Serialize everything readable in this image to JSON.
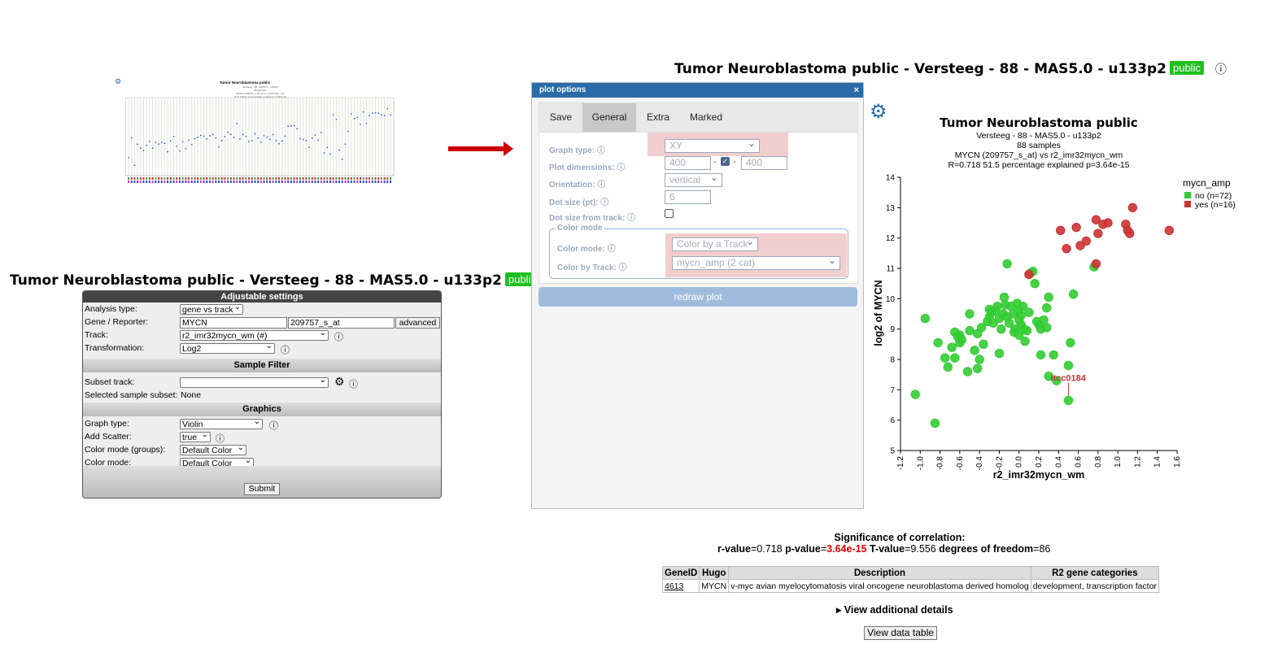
{
  "thumbnail": {
    "title": "Tumor Neuroblastoma public",
    "subtitle_lines": [
      "Versteeg - 88 - MAS5.0 - u133p2",
      "88 samples",
      "MYCN (209757_s_at) vs r2_imr32mycn_wm",
      "R=0.718 51.5 percentage explained p=3.64e-15"
    ]
  },
  "left_title": {
    "text": "Tumor Neuroblastoma public - Versteeg - 88 - MAS5.0 - u133p2",
    "badge": "public"
  },
  "settings": {
    "header": "Adjustable settings",
    "analysis_type_label": "Analysis type:",
    "analysis_type_value": "gene vs track",
    "gene_label": "Gene / Reporter:",
    "gene_value": "MYCN",
    "reporter_value": "209757_s_at",
    "advanced_label": "advanced",
    "track_label": "Track:",
    "track_value": "r2_imr32mycn_wm (#)",
    "transformation_label": "Transformation:",
    "transformation_value": "Log2",
    "sample_filter_header": "Sample Filter",
    "subset_track_label": "Subset track:",
    "subset_track_value": "",
    "selected_subset_label": "Selected sample subset:",
    "selected_subset_value": "None",
    "graphics_header": "Graphics",
    "graph_type_label": "Graph type:",
    "graph_type_value": "Violin",
    "add_scatter_label": "Add Scatter:",
    "add_scatter_value": "true",
    "color_mode_groups_label": "Color mode (groups):",
    "color_mode_groups_value": "Default Color",
    "color_mode_label": "Color mode:",
    "color_mode_value": "Default Color",
    "submit_label": "Submit"
  },
  "dialog": {
    "title": "plot options",
    "close": "×",
    "tabs": [
      "Save",
      "General",
      "Extra",
      "Marked"
    ],
    "graph_type_label": "Graph type:",
    "graph_type_value": "XY",
    "plot_dimensions_label": "Plot dimensions:",
    "width_value": "400",
    "height_value": "400",
    "dash": "-",
    "orientation_label": "Orientation:",
    "orientation_value": "vertical",
    "dot_size_label": "Dot size (pt):",
    "dot_size_value": "6",
    "dot_size_track_label": "Dot size from track:",
    "color_mode_legend": "Color mode",
    "color_mode_label": "Color mode:",
    "color_mode_value": "Color by a Track",
    "color_track_label": "Color by Track:",
    "color_track_value": "mycn_amp (2 cat)",
    "redraw_label": "redraw plot"
  },
  "right_title": {
    "text": "Tumor Neuroblastoma public - Versteeg - 88 - MAS5.0 - u133p2",
    "badge": "public"
  },
  "chart_data": {
    "type": "scatter",
    "title": "Tumor Neuroblastoma public",
    "subtitle_lines": [
      "Versteeg - 88 - MAS5.0 - u133p2",
      "88 samples",
      "MYCN (209757_s_at) vs r2_imr32mycn_wm",
      "R=0.718 51.5 percentage explained p=3.64e-15"
    ],
    "xlabel": "r2_imr32mycn_wm",
    "ylabel": "log2 of MYCN",
    "xlim": [
      -1.2,
      1.6
    ],
    "ylim": [
      5,
      14
    ],
    "xticks": [
      "-1.2",
      "-1.0",
      "-0.8",
      "-0.6",
      "-0.4",
      "-0.2",
      "0.0",
      "0.2",
      "0.4",
      "0.6",
      "0.8",
      "1.0",
      "1.2",
      "1.4",
      "1.6"
    ],
    "yticks": [
      "5",
      "6",
      "7",
      "8",
      "9",
      "10",
      "11",
      "12",
      "13",
      "14"
    ],
    "legend_title": "mycn_amp",
    "legend_position": "top-right",
    "annotation": {
      "label": "itcc0184",
      "x": 0.5,
      "y": 6.65
    },
    "series": [
      {
        "name": "no (n=72)",
        "color": "#33cc33",
        "points": [
          [
            -1.05,
            6.85
          ],
          [
            -0.85,
            5.9
          ],
          [
            -0.95,
            9.35
          ],
          [
            -0.82,
            8.55
          ],
          [
            -0.75,
            8.05
          ],
          [
            -0.72,
            7.75
          ],
          [
            -0.68,
            8.4
          ],
          [
            -0.65,
            8.9
          ],
          [
            -0.62,
            8.75
          ],
          [
            -0.6,
            8.55
          ],
          [
            -0.65,
            8.05
          ],
          [
            -0.58,
            8.65
          ],
          [
            -0.52,
            7.6
          ],
          [
            -0.5,
            8.95
          ],
          [
            -0.5,
            9.5
          ],
          [
            -0.45,
            8.3
          ],
          [
            -0.42,
            7.7
          ],
          [
            -0.4,
            8.0
          ],
          [
            -0.42,
            8.85
          ],
          [
            -0.36,
            8.5
          ],
          [
            -0.32,
            9.25
          ],
          [
            -0.3,
            9.4
          ],
          [
            -0.3,
            9.65
          ],
          [
            -0.26,
            9.2
          ],
          [
            -0.24,
            9.6
          ],
          [
            -0.22,
            9.75
          ],
          [
            -0.2,
            9.35
          ],
          [
            -0.2,
            8.2
          ],
          [
            -0.18,
            9.0
          ],
          [
            -0.16,
            9.5
          ],
          [
            -0.15,
            10.05
          ],
          [
            -0.14,
            9.8
          ],
          [
            -0.12,
            9.4
          ],
          [
            -0.1,
            9.2
          ],
          [
            -0.08,
            9.75
          ],
          [
            -0.06,
            9.5
          ],
          [
            -0.04,
            9.0
          ],
          [
            -0.02,
            9.85
          ],
          [
            0.0,
            9.3
          ],
          [
            0.0,
            8.8
          ],
          [
            0.02,
            9.45
          ],
          [
            0.04,
            9.75
          ],
          [
            0.05,
            9.0
          ],
          [
            0.06,
            8.6
          ],
          [
            0.08,
            8.95
          ],
          [
            -0.12,
            11.15
          ],
          [
            0.12,
            10.85
          ],
          [
            0.14,
            10.9
          ],
          [
            0.16,
            10.5
          ],
          [
            0.2,
            9.15
          ],
          [
            0.22,
            9.0
          ],
          [
            0.22,
            8.15
          ],
          [
            0.25,
            9.3
          ],
          [
            0.28,
            9.7
          ],
          [
            0.3,
            10.05
          ],
          [
            0.3,
            7.45
          ],
          [
            0.35,
            8.15
          ],
          [
            0.38,
            7.3
          ],
          [
            0.5,
            7.8
          ],
          [
            0.52,
            8.55
          ],
          [
            0.55,
            10.15
          ],
          [
            0.5,
            6.65
          ],
          [
            0.1,
            9.55
          ],
          [
            -0.05,
            8.9
          ],
          [
            0.18,
            9.25
          ],
          [
            -0.28,
            9.55
          ],
          [
            0.0,
            9.6
          ],
          [
            -0.38,
            9.05
          ],
          [
            0.02,
            9.15
          ],
          [
            -0.6,
            8.8
          ],
          [
            0.28,
            9.05
          ],
          [
            0.76,
            11.05
          ]
        ]
      },
      {
        "name": "yes (n=16)",
        "color": "#cc3333",
        "points": [
          [
            0.42,
            12.25
          ],
          [
            0.48,
            11.65
          ],
          [
            0.58,
            12.35
          ],
          [
            0.62,
            11.75
          ],
          [
            0.68,
            11.9
          ],
          [
            0.78,
            12.6
          ],
          [
            0.8,
            12.15
          ],
          [
            0.85,
            12.45
          ],
          [
            0.9,
            12.5
          ],
          [
            1.08,
            12.45
          ],
          [
            1.1,
            12.25
          ],
          [
            1.12,
            12.15
          ],
          [
            1.15,
            13.0
          ],
          [
            1.52,
            12.25
          ],
          [
            0.1,
            10.8
          ],
          [
            0.78,
            11.15
          ]
        ]
      }
    ]
  },
  "significance": {
    "heading": "Significance of correlation:",
    "r_label": "r-value",
    "r_value": "0.718",
    "p_label": "p-value",
    "p_value": "3.64e-15",
    "t_label": "T-value",
    "t_value": "9.556",
    "df_label": "degrees of freedom",
    "df_value": "86"
  },
  "gene_table": {
    "headers": [
      "GeneID",
      "Hugo",
      "Description",
      "R2 gene categories"
    ],
    "row": [
      "4613",
      "MYCN",
      "v-myc avian myelocytomatosis viral oncogene neuroblastoma derived homolog",
      "development, transcription factor"
    ]
  },
  "details_label": "▸ View additional details",
  "view_table_label": "View data table"
}
